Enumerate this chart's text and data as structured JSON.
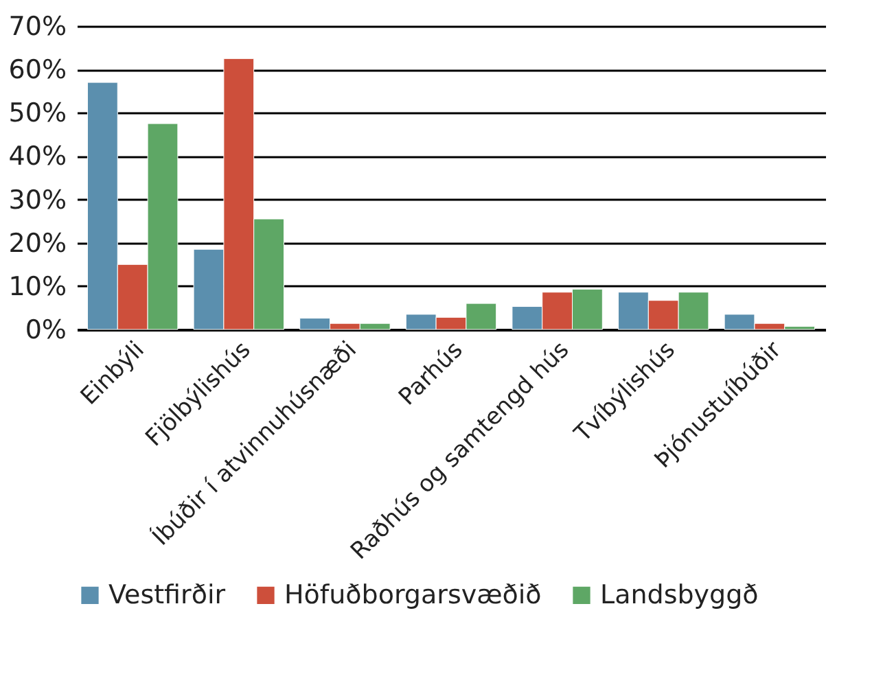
{
  "chart_data": {
    "type": "bar",
    "categories": [
      "Einbýli",
      "Fjölbýlishús",
      "Íbúðir í atvinnuhúsnæði",
      "Parhús",
      "Raðhús og samtengd hús",
      "Tvíbýlishús",
      "Þjónustuíbúðir"
    ],
    "series": [
      {
        "name": "Vestfirðir",
        "color": "#5b8fae",
        "values": [
          57,
          18.5,
          2.6,
          3.5,
          5.3,
          8.6,
          3.5
        ]
      },
      {
        "name": "Höfuðborgarsvæðið",
        "color": "#cd4f3b",
        "values": [
          15,
          62.5,
          1.4,
          2.8,
          8.6,
          6.7,
          1.4
        ]
      },
      {
        "name": "Landsbyggð",
        "color": "#5ea765",
        "values": [
          47.5,
          25.5,
          1.4,
          6,
          9.3,
          8.6,
          0.7
        ]
      }
    ],
    "ylim": [
      0,
      70
    ],
    "yticks": [
      {
        "value": 0,
        "label": "0%"
      },
      {
        "value": 10,
        "label": "10%"
      },
      {
        "value": 20,
        "label": "20%"
      },
      {
        "value": 30,
        "label": "30%"
      },
      {
        "value": 40,
        "label": "40%"
      },
      {
        "value": 50,
        "label": "50%"
      },
      {
        "value": 60,
        "label": "60%"
      },
      {
        "value": 70,
        "label": "70%"
      }
    ],
    "grid": "y",
    "legend": "bottom left"
  }
}
